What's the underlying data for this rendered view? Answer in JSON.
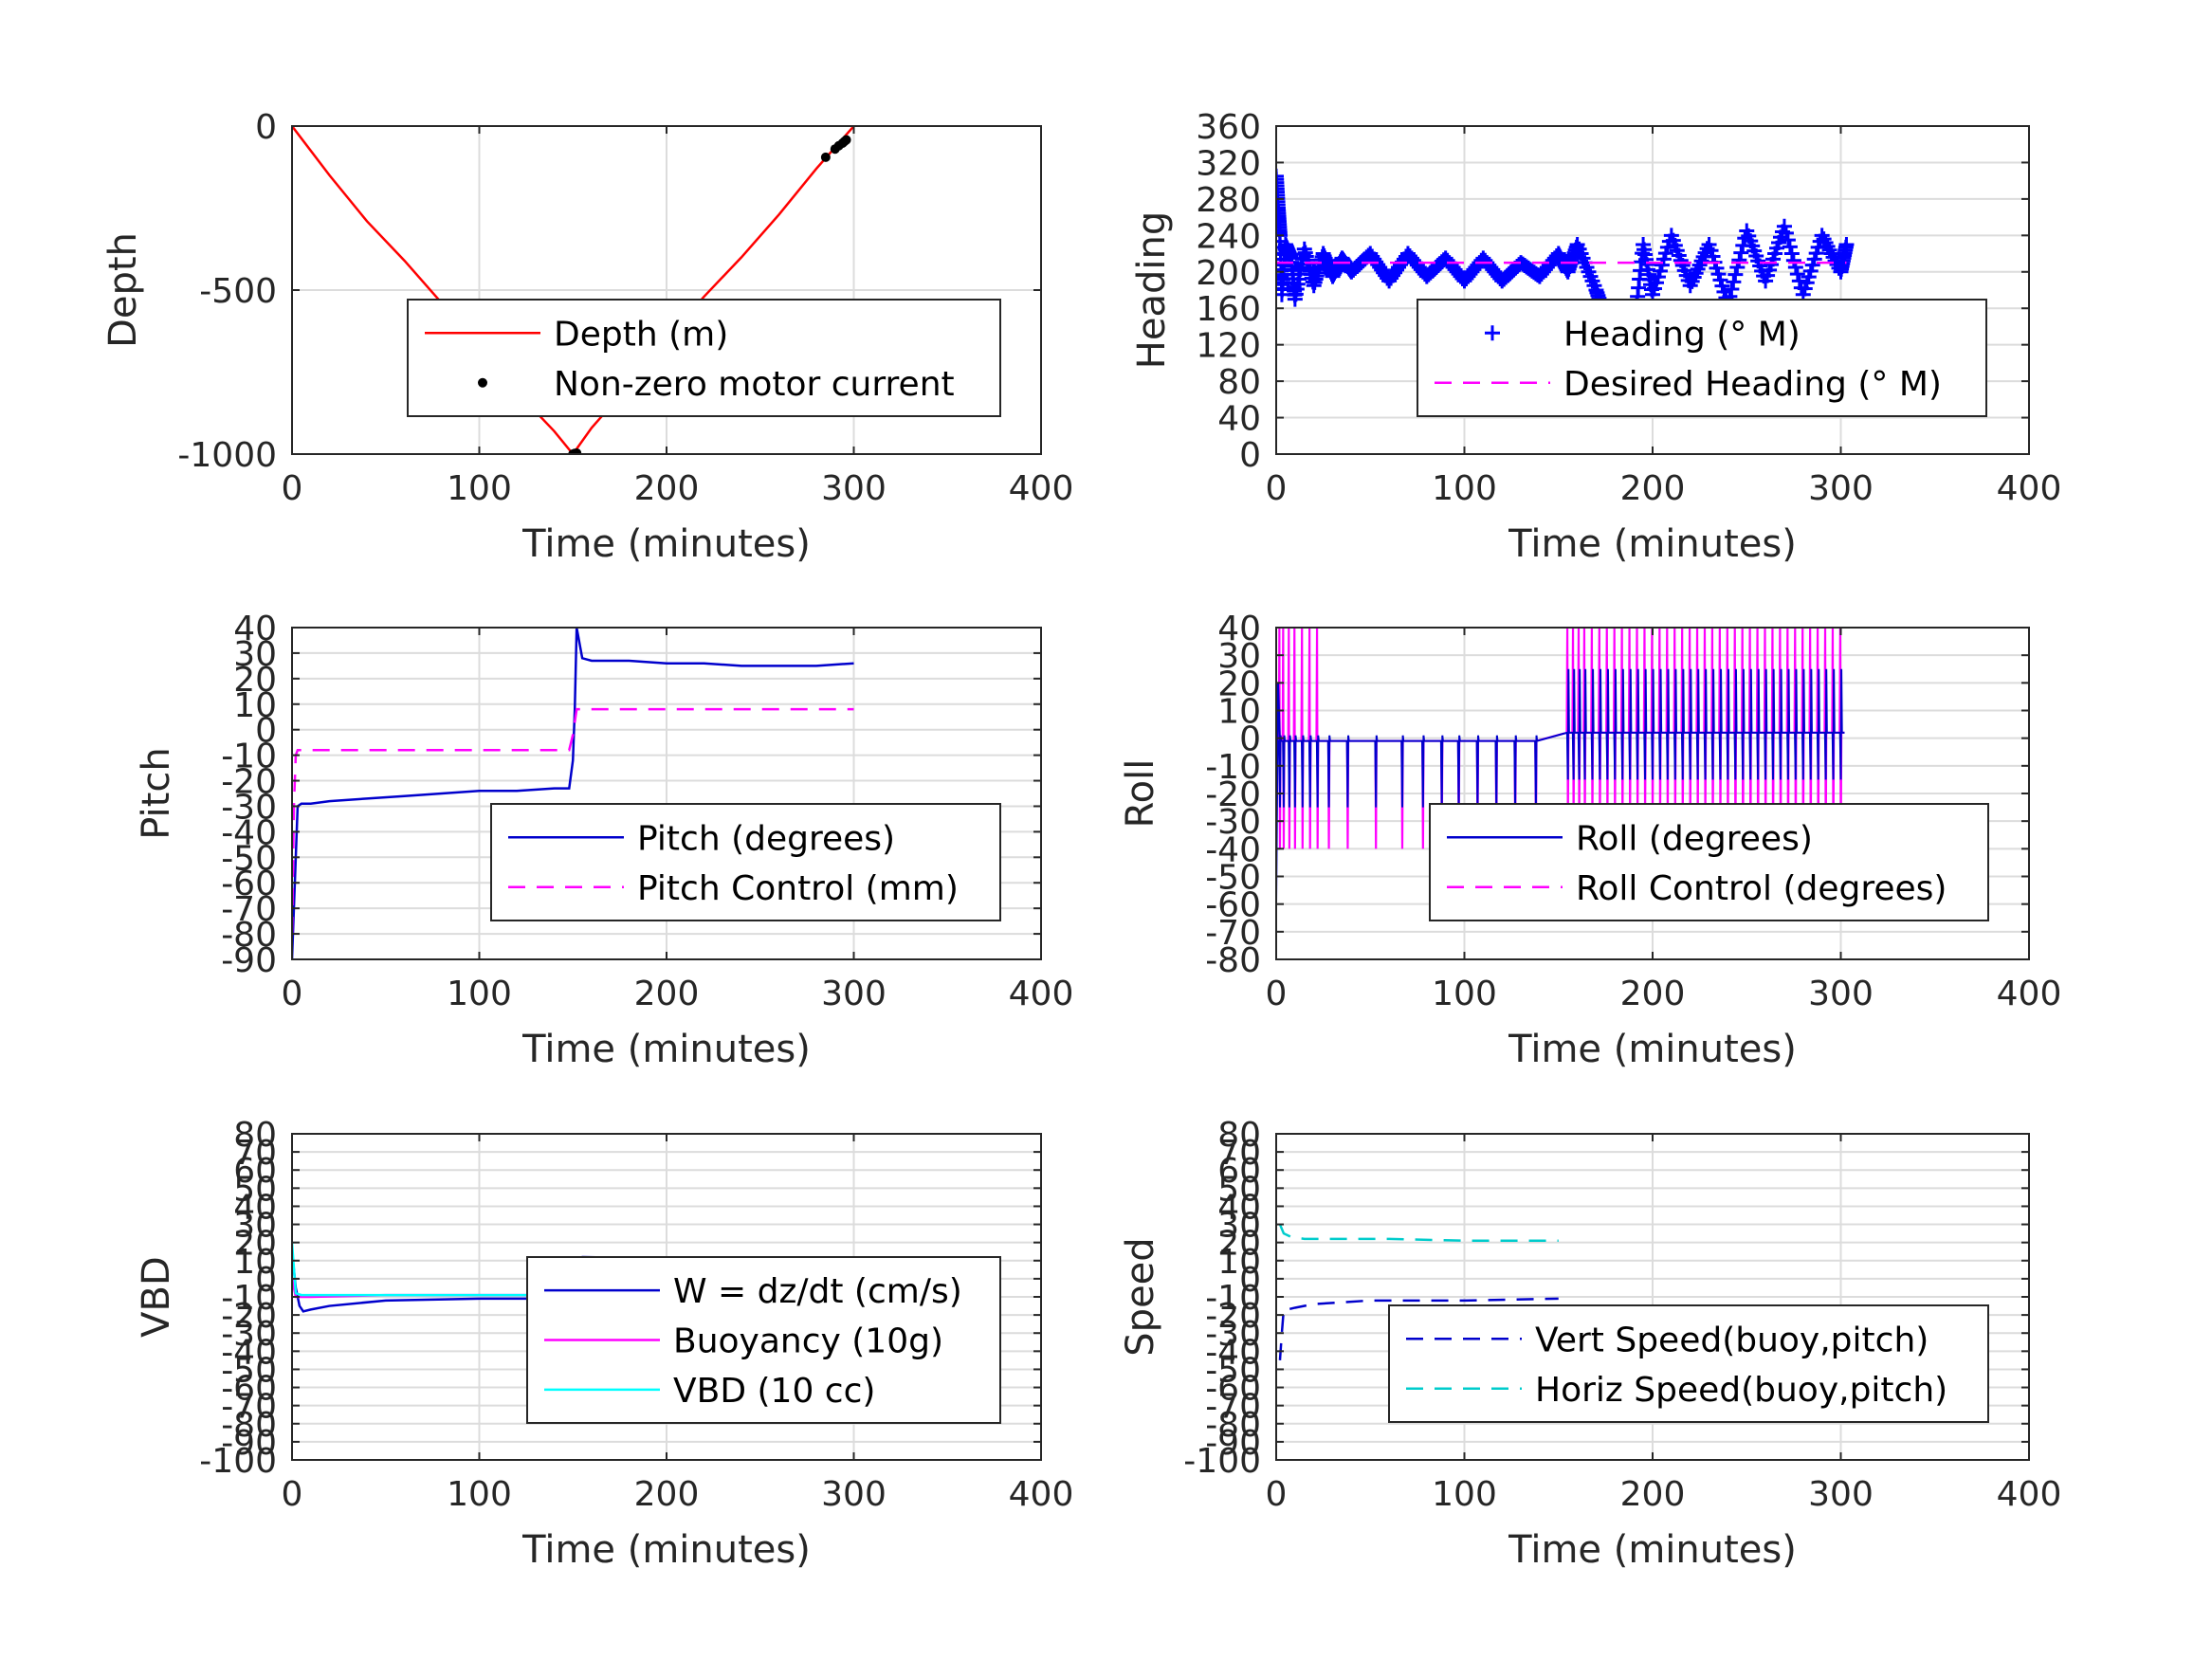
{
  "chart_data": [
    {
      "type": "line",
      "xlabel": "Time (minutes)",
      "ylabel": "Depth",
      "xlim": [
        0,
        400
      ],
      "ylim": [
        -1000,
        0
      ],
      "xticks": [
        "0",
        "100",
        "200",
        "300",
        "400"
      ],
      "yticks": [
        {
          "v": 0,
          "t": "0"
        },
        {
          "v": -500,
          "t": "-500"
        },
        {
          "v": -1000,
          "t": "-1000"
        }
      ],
      "grid": true,
      "legend_position": "lower-right",
      "series": [
        {
          "name": "Depth (m)",
          "style": "line",
          "color": "#ff0000",
          "x": [
            0,
            20,
            40,
            60,
            80,
            100,
            120,
            140,
            150,
            160,
            180,
            200,
            220,
            240,
            260,
            280,
            300
          ],
          "y": [
            0,
            -150,
            -290,
            -410,
            -540,
            -680,
            -810,
            -930,
            -1000,
            -920,
            -790,
            -650,
            -520,
            -400,
            -270,
            -130,
            0
          ]
        },
        {
          "name": "Non-zero motor current",
          "style": "marker-dot",
          "color": "#000000",
          "x": [
            150,
            151,
            152,
            285,
            290,
            292,
            294,
            295,
            296
          ],
          "y": [
            -1000,
            -998,
            -997,
            -95,
            -70,
            -60,
            -52,
            -47,
            -42
          ]
        }
      ]
    },
    {
      "type": "scatter",
      "xlabel": "Time (minutes)",
      "ylabel": "Heading",
      "xlim": [
        0,
        400
      ],
      "ylim": [
        0,
        360
      ],
      "xticks": [
        "0",
        "100",
        "200",
        "300",
        "400"
      ],
      "yticks": [
        {
          "v": 0,
          "t": "0"
        },
        {
          "v": 40,
          "t": "40"
        },
        {
          "v": 80,
          "t": "80"
        },
        {
          "v": 120,
          "t": "120"
        },
        {
          "v": 160,
          "t": "160"
        },
        {
          "v": 200,
          "t": "200"
        },
        {
          "v": 240,
          "t": "240"
        },
        {
          "v": 280,
          "t": "280"
        },
        {
          "v": 320,
          "t": "320"
        },
        {
          "v": 360,
          "t": "360"
        }
      ],
      "grid": true,
      "legend_position": "lower-right",
      "series": [
        {
          "name": "Heading (° M)",
          "style": "marker-plus",
          "color": "#0000ff",
          "x": [
            0,
            1,
            2,
            3,
            5,
            8,
            10,
            15,
            20,
            25,
            30,
            35,
            40,
            50,
            60,
            70,
            80,
            90,
            100,
            110,
            120,
            130,
            140,
            150,
            155,
            160,
            170,
            175,
            180,
            185,
            190,
            195,
            200,
            210,
            220,
            230,
            240,
            250,
            260,
            270,
            280,
            290,
            300,
            303
          ],
          "y": [
            305,
            270,
            240,
            175,
            230,
            215,
            170,
            225,
            185,
            220,
            195,
            215,
            200,
            220,
            190,
            220,
            195,
            215,
            190,
            215,
            190,
            210,
            195,
            220,
            200,
            230,
            180,
            150,
            130,
            160,
            135,
            230,
            175,
            240,
            185,
            230,
            165,
            245,
            190,
            250,
            175,
            240,
            200,
            230
          ]
        },
        {
          "name": "Desired Heading (° M)",
          "style": "dashed",
          "color": "#ff00ff",
          "x": [
            0,
            303
          ],
          "y": [
            210,
            210
          ]
        }
      ]
    },
    {
      "type": "line",
      "xlabel": "Time (minutes)",
      "ylabel": "Pitch",
      "xlim": [
        0,
        400
      ],
      "ylim": [
        -90,
        40
      ],
      "xticks": [
        "0",
        "100",
        "200",
        "300",
        "400"
      ],
      "yticks": [
        {
          "v": 40,
          "t": "40"
        },
        {
          "v": 30,
          "t": "30"
        },
        {
          "v": 20,
          "t": "20"
        },
        {
          "v": 10,
          "t": "10"
        },
        {
          "v": 0,
          "t": "0"
        },
        {
          "v": -10,
          "t": "-10"
        },
        {
          "v": -20,
          "t": "-20"
        },
        {
          "v": -30,
          "t": "-30"
        },
        {
          "v": -40,
          "t": "-40"
        },
        {
          "v": -50,
          "t": "-50"
        },
        {
          "v": -60,
          "t": "-60"
        },
        {
          "v": -70,
          "t": "-70"
        },
        {
          "v": -80,
          "t": "-80"
        },
        {
          "v": -90,
          "t": "-90"
        }
      ],
      "grid": true,
      "legend_position": "lower-right",
      "series": [
        {
          "name": "Pitch (degrees)",
          "style": "line",
          "color": "#0000cc",
          "x": [
            0,
            1,
            2,
            3,
            5,
            10,
            20,
            40,
            60,
            80,
            100,
            120,
            140,
            148,
            150,
            151,
            152,
            155,
            160,
            180,
            200,
            220,
            240,
            260,
            280,
            300
          ],
          "y": [
            -90,
            -70,
            -50,
            -30,
            -29,
            -29,
            -28,
            -27,
            -26,
            -25,
            -24,
            -24,
            -23,
            -23,
            -12,
            8,
            40,
            28,
            27,
            27,
            26,
            26,
            25,
            25,
            25,
            26
          ]
        },
        {
          "name": "Pitch Control (mm)",
          "style": "dashed",
          "color": "#ff00ff",
          "x": [
            0,
            1,
            2,
            3,
            5,
            50,
            100,
            148,
            150,
            152,
            200,
            250,
            300
          ],
          "y": [
            -80,
            -30,
            -10,
            -8,
            -8,
            -8,
            -8,
            -8,
            -2,
            8,
            8,
            8,
            8
          ]
        }
      ]
    },
    {
      "type": "line",
      "xlabel": "Time (minutes)",
      "ylabel": "Roll",
      "xlim": [
        0,
        400
      ],
      "ylim": [
        -80,
        40
      ],
      "xticks": [
        "0",
        "100",
        "200",
        "300",
        "400"
      ],
      "yticks": [
        {
          "v": 40,
          "t": "40"
        },
        {
          "v": 30,
          "t": "30"
        },
        {
          "v": 20,
          "t": "20"
        },
        {
          "v": 10,
          "t": "10"
        },
        {
          "v": 0,
          "t": "0"
        },
        {
          "v": -10,
          "t": "-10"
        },
        {
          "v": -20,
          "t": "-20"
        },
        {
          "v": -30,
          "t": "-30"
        },
        {
          "v": -40,
          "t": "-40"
        },
        {
          "v": -50,
          "t": "-50"
        },
        {
          "v": -60,
          "t": "-60"
        },
        {
          "v": -70,
          "t": "-70"
        },
        {
          "v": -80,
          "t": "-80"
        }
      ],
      "grid": true,
      "legend_position": "lower-right",
      "spike_plot": {
        "base_early": -1,
        "base_late": 2,
        "switch_time": 150,
        "end_time": 302,
        "spikes_early": [
          2,
          4,
          7,
          10,
          14,
          18,
          22,
          28,
          38,
          53,
          67,
          78,
          88,
          97,
          107,
          117,
          127,
          138
        ],
        "spikes_late": [
          155,
          158,
          161,
          164,
          168,
          172,
          176,
          180,
          184,
          188,
          192,
          196,
          200,
          204,
          208,
          212,
          216,
          220,
          224,
          228,
          232,
          236,
          240,
          244,
          248,
          252,
          256,
          260,
          264,
          268,
          272,
          276,
          280,
          284,
          288,
          292,
          296,
          300
        ]
      },
      "series": [
        {
          "name": "Roll (degrees)",
          "style": "line",
          "color": "#0000cc",
          "x": [
            0,
            302
          ],
          "y": [
            -1,
            2
          ]
        },
        {
          "name": "Roll Control (degrees)",
          "style": "dashed",
          "color": "#ff00ff",
          "x": [
            0,
            302
          ],
          "y": [
            -1,
            2
          ]
        }
      ]
    },
    {
      "type": "line",
      "xlabel": "Time (minutes)",
      "ylabel": "VBD",
      "xlim": [
        0,
        400
      ],
      "ylim": [
        -100,
        80
      ],
      "xticks": [
        "0",
        "100",
        "200",
        "300",
        "400"
      ],
      "yticks": [
        {
          "v": 80,
          "t": "80"
        },
        {
          "v": 70,
          "t": "70"
        },
        {
          "v": 60,
          "t": "60"
        },
        {
          "v": 50,
          "t": "50"
        },
        {
          "v": 40,
          "t": "40"
        },
        {
          "v": 30,
          "t": "30"
        },
        {
          "v": 20,
          "t": "20"
        },
        {
          "v": 10,
          "t": "10"
        },
        {
          "v": 0,
          "t": "0"
        },
        {
          "v": -10,
          "t": "-10"
        },
        {
          "v": -20,
          "t": "-20"
        },
        {
          "v": -30,
          "t": "-30"
        },
        {
          "v": -40,
          "t": "-40"
        },
        {
          "v": -50,
          "t": "-50"
        },
        {
          "v": -60,
          "t": "-60"
        },
        {
          "v": -70,
          "t": "-70"
        },
        {
          "v": -80,
          "t": "-80"
        },
        {
          "v": -90,
          "t": "-90"
        },
        {
          "v": -100,
          "t": "-100"
        }
      ],
      "grid": true,
      "legend_position": "lower-right",
      "series": [
        {
          "name": "W = dz/dt (cm/s)",
          "style": "line",
          "color": "#0000cc",
          "x": [
            0,
            2,
            4,
            6,
            10,
            20,
            50,
            100,
            148,
            150,
            152,
            155,
            200,
            250,
            300
          ],
          "y": [
            15,
            -5,
            -15,
            -18,
            -17,
            -15,
            -12,
            -11,
            -11,
            -5,
            10,
            12,
            11,
            10,
            9
          ]
        },
        {
          "name": "Buoyancy (10g)",
          "style": "line",
          "color": "#ff00ff",
          "x": [
            0,
            2,
            5,
            10,
            50,
            100,
            148,
            150,
            152,
            200,
            250,
            300
          ],
          "y": [
            0,
            -10,
            -10,
            -10,
            -9,
            -9,
            -9,
            -3,
            8,
            8,
            8,
            8
          ]
        },
        {
          "name": "VBD (10 cc)",
          "style": "line",
          "color": "#00ffff",
          "x": [
            0,
            2,
            5,
            10,
            50,
            100,
            148,
            150,
            152,
            200,
            250,
            300
          ],
          "y": [
            20,
            -8,
            -9,
            -9,
            -9,
            -9,
            -9,
            -3,
            8,
            8,
            8,
            9
          ]
        }
      ]
    },
    {
      "type": "line",
      "xlabel": "Time (minutes)",
      "ylabel": "Speed",
      "xlim": [
        0,
        400
      ],
      "ylim": [
        -100,
        80
      ],
      "xticks": [
        "0",
        "100",
        "200",
        "300",
        "400"
      ],
      "yticks": [
        {
          "v": 80,
          "t": "80"
        },
        {
          "v": 70,
          "t": "70"
        },
        {
          "v": 60,
          "t": "60"
        },
        {
          "v": 50,
          "t": "50"
        },
        {
          "v": 40,
          "t": "40"
        },
        {
          "v": 30,
          "t": "30"
        },
        {
          "v": 20,
          "t": "20"
        },
        {
          "v": 10,
          "t": "10"
        },
        {
          "v": 0,
          "t": "0"
        },
        {
          "v": -10,
          "t": "-10"
        },
        {
          "v": -20,
          "t": "-20"
        },
        {
          "v": -30,
          "t": "-30"
        },
        {
          "v": -40,
          "t": "-40"
        },
        {
          "v": -50,
          "t": "-50"
        },
        {
          "v": -60,
          "t": "-60"
        },
        {
          "v": -70,
          "t": "-70"
        },
        {
          "v": -80,
          "t": "-80"
        },
        {
          "v": -90,
          "t": "-90"
        },
        {
          "v": -100,
          "t": "-100"
        }
      ],
      "grid": true,
      "legend_position": "lower-right",
      "series": [
        {
          "name": "Vert Speed(buoy,pitch)",
          "style": "dashed",
          "color": "#0000cc",
          "x": [
            2,
            3,
            4,
            6,
            10,
            20,
            50,
            100,
            150
          ],
          "y": [
            -45,
            -30,
            -17,
            -17,
            -16,
            -14,
            -12,
            -12,
            -11
          ]
        },
        {
          "name": "Horiz Speed(buoy,pitch)",
          "style": "dashed",
          "color": "#00cccc",
          "x": [
            2,
            4,
            8,
            15,
            30,
            60,
            100,
            150
          ],
          "y": [
            30,
            25,
            23,
            22,
            22,
            22,
            21,
            21
          ]
        }
      ]
    }
  ]
}
